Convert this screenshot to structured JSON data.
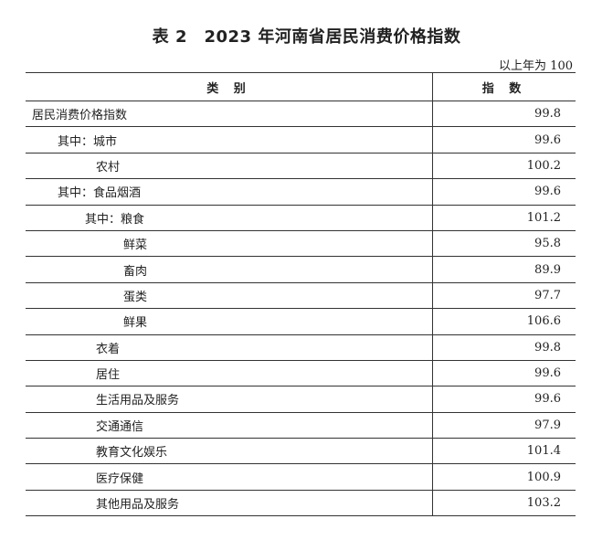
{
  "title": "表 2　2023 年河南省居民消费价格指数",
  "unit_note": "以上年为 100",
  "columns": [
    "类 别",
    "指 数"
  ],
  "rows": [
    {
      "label": "居民消费价格指数",
      "value": "99.8",
      "level": 0
    },
    {
      "label": "其中：城市",
      "value": "99.6",
      "level": 1
    },
    {
      "label": "农村",
      "value": "100.2",
      "level": 2
    },
    {
      "label": "其中：食品烟酒",
      "value": "99.6",
      "level": 1
    },
    {
      "label": "其中：粮食",
      "value": "101.2",
      "level": 3
    },
    {
      "label": "鲜菜",
      "value": "95.8",
      "level": 4
    },
    {
      "label": "畜肉",
      "value": "89.9",
      "level": 4
    },
    {
      "label": "蛋类",
      "value": "97.7",
      "level": 4
    },
    {
      "label": "鲜果",
      "value": "106.6",
      "level": 4
    },
    {
      "label": "衣着",
      "value": "99.8",
      "level": 2
    },
    {
      "label": "居住",
      "value": "99.6",
      "level": 2
    },
    {
      "label": "生活用品及服务",
      "value": "99.6",
      "level": 2
    },
    {
      "label": "交通通信",
      "value": "97.9",
      "level": 2
    },
    {
      "label": "教育文化娱乐",
      "value": "101.4",
      "level": 2
    },
    {
      "label": "医疗保健",
      "value": "100.9",
      "level": 2
    },
    {
      "label": "其他用品及服务",
      "value": "103.2",
      "level": 2
    }
  ]
}
